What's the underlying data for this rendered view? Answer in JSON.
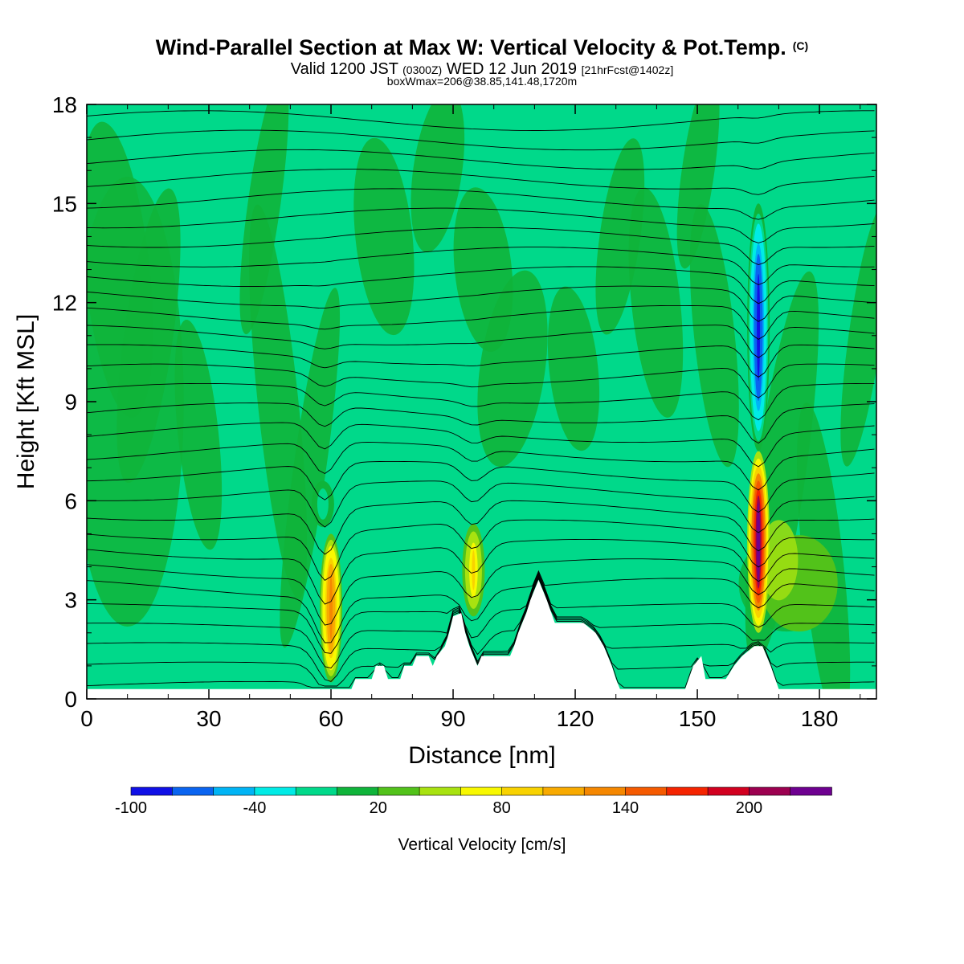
{
  "chart_data": {
    "type": "heatmap",
    "title": "Wind-Parallel Section at Max W: Vertical Velocity & Pot.Temp.",
    "title_mark": "(C)",
    "subtitle_parts": [
      "Valid 1200 JST ",
      "(0300Z)",
      " WED 12 Jun 2019 ",
      "[21hrFcst@1402z]"
    ],
    "subtitle2": "boxWmax=206@38.85,141.48,1720m",
    "xlabel": "Distance [nm]",
    "ylabel": "Height [Kft MSL]",
    "xlim": [
      0,
      194
    ],
    "ylim": [
      0,
      18
    ],
    "x_ticks": [
      0,
      30,
      60,
      90,
      120,
      150,
      180
    ],
    "y_ticks": [
      0,
      3,
      6,
      9,
      12,
      15,
      18
    ],
    "colorbar": {
      "label": "Vertical Velocity [cm/s]",
      "tick_labels": [
        "-100",
        "-40",
        "20",
        "80",
        "140",
        "200"
      ],
      "colors": [
        "#1010e6",
        "#0a64f0",
        "#00b4f5",
        "#00ebe6",
        "#00d98a",
        "#0fb43a",
        "#52c21a",
        "#a8e210",
        "#f8f800",
        "#f8d200",
        "#f8aa00",
        "#f58700",
        "#f55a00",
        "#f52400",
        "#d20020",
        "#9c0050",
        "#6e0090"
      ]
    },
    "base_value_cm_s": 0,
    "terrain_kft": [
      [
        0,
        0.3
      ],
      [
        65,
        0.3
      ],
      [
        66,
        0.6
      ],
      [
        70,
        0.6
      ],
      [
        71,
        1.0
      ],
      [
        73,
        1.0
      ],
      [
        74,
        0.6
      ],
      [
        77,
        0.6
      ],
      [
        78,
        1.0
      ],
      [
        80,
        1.0
      ],
      [
        81,
        1.3
      ],
      [
        84,
        1.3
      ],
      [
        85,
        1.0
      ],
      [
        86,
        1.3
      ],
      [
        88,
        1.6
      ],
      [
        89,
        2.0
      ],
      [
        90,
        2.5
      ],
      [
        92,
        2.6
      ],
      [
        93,
        2.0
      ],
      [
        94,
        1.6
      ],
      [
        96,
        1.0
      ],
      [
        97,
        1.3
      ],
      [
        104,
        1.3
      ],
      [
        105,
        1.6
      ],
      [
        106,
        2.0
      ],
      [
        108,
        2.6
      ],
      [
        109,
        3.0
      ],
      [
        111,
        3.6
      ],
      [
        113,
        3.0
      ],
      [
        115,
        2.3
      ],
      [
        122,
        2.3
      ],
      [
        125,
        2.0
      ],
      [
        127,
        1.6
      ],
      [
        129,
        1.0
      ],
      [
        130,
        0.6
      ],
      [
        131,
        0.3
      ],
      [
        147,
        0.3
      ],
      [
        149,
        1.0
      ],
      [
        151,
        1.3
      ],
      [
        152,
        0.6
      ],
      [
        157,
        0.6
      ],
      [
        159,
        1.0
      ],
      [
        161,
        1.3
      ],
      [
        164,
        1.6
      ],
      [
        166,
        1.6
      ],
      [
        168,
        1.0
      ],
      [
        170,
        0.3
      ],
      [
        194,
        0.3
      ]
    ],
    "theta_levels_count": 30,
    "updraft_cores": [
      {
        "x_nm": 60,
        "z_kft_bottom": 0.5,
        "z_kft_top": 5,
        "w_max_cm_s": 110
      },
      {
        "x_nm": 95,
        "z_kft_bottom": 2.5,
        "z_kft_top": 5.3,
        "w_max_cm_s": 60
      },
      {
        "x_nm": 165,
        "z_kft_bottom": 2,
        "z_kft_top": 7.5,
        "w_max_cm_s": 206
      }
    ],
    "downdraft_cores": [
      {
        "x_nm": 165,
        "z_kft_bottom": 7.5,
        "z_kft_top": 15,
        "w_min_cm_s": -110
      },
      {
        "x_nm": 58,
        "z_kft_bottom": 5.2,
        "z_kft_top": 6.6,
        "w_min_cm_s": -40
      }
    ]
  }
}
